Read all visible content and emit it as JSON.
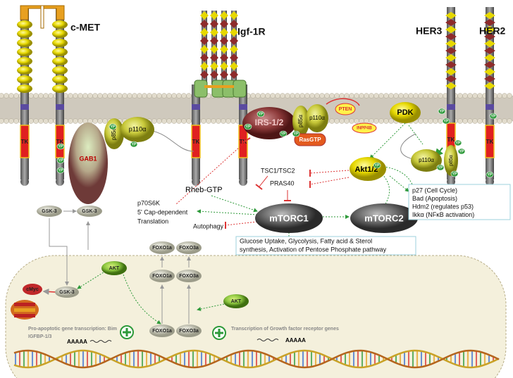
{
  "receptors": {
    "c_met": "c-MET",
    "igf1r": "Igf-1R",
    "her3": "HER3",
    "her2": "HER2"
  },
  "kinase_domains": [
    "TK",
    "TK",
    "TK",
    "TK",
    "TK",
    "TK"
  ],
  "membrane_proteins": {
    "gab1": "GAB1",
    "p85_met": "p85α",
    "p110_met": "p110α",
    "irs": "IRS-1/2",
    "p85_igf": "p85α",
    "p110_igf": "p110α",
    "rasgtp": "RasGTP",
    "pten": "PTEN",
    "inpp4b": "INPP4B",
    "pdk": "PDK",
    "p110_her": "p110α",
    "p85_her": "p85α"
  },
  "cytoplasm": {
    "akt": "Akt1/2",
    "tsc": "TSC1/TSC2",
    "pras40": "PRAS40",
    "rheb": "Rheb-GTP",
    "p70s6k": "p70S6K",
    "cap": "5' Cap-dependent",
    "translation": "Translation",
    "autophagy": "Autophagy",
    "mtorc1": "mTORC1",
    "mtorc2": "mTORC2",
    "akt_targets": [
      "p27 (Cell Cycle)",
      "Bad (Apoptosis)",
      "Hdm2 (regulates p53)",
      "Ikkα (NFκB activation)"
    ],
    "mtorc1_effects": [
      "Glucose Uptake, Glycolysis, Fatty acid & Sterol",
      "synthesis, Activation of Pentose Phosphate pathway"
    ],
    "gsk3_a": "GSK-3",
    "gsk3_b": "GSK-3",
    "akt_cyto": "AKT",
    "foxo1a_out": "FOXO1a",
    "foxo3a_out": "FOXO3a"
  },
  "nucleus": {
    "gsk3": "GSK-3",
    "cmyc": "cMyc",
    "akt_nuc": "AKT",
    "foxo1a_in": "FOXO1a",
    "foxo3a_in": "FOXO3a",
    "foxo1a_dna": "FOXO1a",
    "foxo3a_dna": "FOXO3a",
    "pro_apoptotic": [
      "Pro-apoptotic gene transcription: Bim",
      "IGFBP-1/3"
    ],
    "growth": "Transcription of Growth factor receptor genes",
    "polya": [
      "AAAAA",
      "AAAAA"
    ]
  },
  "phospho_sites": [
    "YP",
    "YP",
    "YP",
    "YP",
    "YP",
    "YP",
    "YP",
    "YP",
    "YP",
    "YP",
    "YP",
    "YP",
    "YP",
    "YP",
    "YP",
    "YP",
    "YP",
    "YP"
  ]
}
